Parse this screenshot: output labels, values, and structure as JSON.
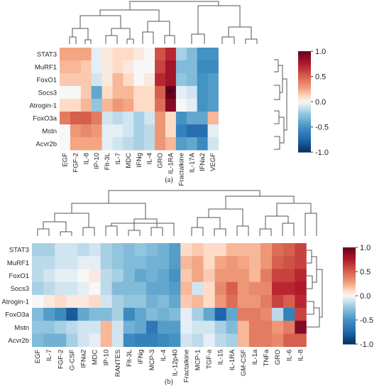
{
  "chart_data": [
    {
      "type": "heatmap",
      "panel_label": "(a)",
      "rows": [
        "STAT3",
        "MuRF1",
        "FoxO1",
        "Socs3",
        "Atrogin-1",
        "FoxO3a",
        "Mstn",
        "Acvr2b"
      ],
      "columns": [
        "EGF",
        "FGF-2",
        "IL-8",
        "IP-10",
        "Flt-3L",
        "IL-7",
        "MDC",
        "IFNg",
        "IL-4",
        "GRO",
        "IL-1RA",
        "Fractalkine",
        "IL-17A",
        "IFNa2",
        "VEGF"
      ],
      "values": [
        [
          0.25,
          0.25,
          0.25,
          -0.05,
          0.05,
          0.1,
          0.1,
          0.05,
          0.0,
          0.55,
          0.7,
          -0.2,
          -0.3,
          -0.5,
          -0.5
        ],
        [
          0.2,
          0.2,
          0.15,
          -0.05,
          0.05,
          0.1,
          0.05,
          0.0,
          0.0,
          0.6,
          0.8,
          -0.3,
          -0.3,
          -0.55,
          -0.55
        ],
        [
          0.15,
          0.15,
          0.15,
          -0.1,
          0.05,
          0.2,
          0.1,
          0.0,
          0.05,
          0.7,
          0.8,
          -0.25,
          -0.3,
          -0.5,
          -0.45
        ],
        [
          0.0,
          0.0,
          0.15,
          -0.4,
          0.1,
          0.2,
          0.2,
          0.1,
          0.1,
          0.5,
          1.0,
          -0.05,
          -0.1,
          -0.5,
          -0.45
        ],
        [
          0.1,
          0.1,
          0.2,
          -0.25,
          0.2,
          0.3,
          0.25,
          0.1,
          0.1,
          0.45,
          0.9,
          0.0,
          -0.05,
          -0.5,
          -0.45
        ],
        [
          0.4,
          0.5,
          0.5,
          0.4,
          -0.1,
          -0.15,
          -0.1,
          -0.2,
          -0.1,
          0.3,
          0.1,
          -0.5,
          -0.4,
          -0.4,
          0.2
        ],
        [
          0.0,
          0.3,
          0.35,
          0.3,
          -0.05,
          -0.05,
          -0.1,
          -0.2,
          -0.15,
          0.3,
          0.1,
          -0.6,
          -0.7,
          -0.7,
          -0.05
        ],
        [
          0.0,
          0.25,
          0.25,
          0.25,
          -0.05,
          -0.1,
          -0.15,
          -0.2,
          -0.15,
          0.3,
          0.2,
          -0.45,
          -0.4,
          -0.55,
          -0.1
        ]
      ],
      "annotation": {
        "text": "*",
        "row": "Socs3",
        "column": "IL-1RA"
      },
      "colorbar": {
        "min": -1.0,
        "max": 1.0,
        "ticks": [
          "1.0",
          "0.5",
          "0.0",
          "-0.5",
          "-1.0"
        ]
      },
      "colormap": {
        "negative": "#053061",
        "neutral": "#f7f7f7",
        "positive": "#67001f"
      }
    },
    {
      "type": "heatmap",
      "panel_label": "(b)",
      "rows": [
        "STAT3",
        "MuRF1",
        "FoxO1",
        "Socs3",
        "Atrogin-1",
        "FoxO3a",
        "Mstn",
        "Acvr2b"
      ],
      "columns": [
        "EGF",
        "IL-7",
        "FGF-2",
        "G-CSF",
        "IFNa2",
        "MDC",
        "IP-10",
        "RANTES",
        "Flt-3L",
        "IFNg",
        "MCP-3",
        "IL-4",
        "IL-12p40",
        "Fractalkine",
        "MCP-1",
        "TGF-a",
        "IL-15",
        "IL-1RA",
        "GM-CSF",
        "IL-1a",
        "TNFa",
        "GRO",
        "IL-6",
        "IL-8"
      ],
      "values": [
        [
          -0.2,
          -0.2,
          -0.1,
          -0.1,
          -0.15,
          -0.1,
          -0.2,
          -0.25,
          -0.3,
          -0.25,
          -0.3,
          -0.35,
          -0.45,
          0.1,
          0.15,
          0.1,
          0.1,
          0.2,
          0.2,
          0.2,
          0.3,
          0.45,
          0.5,
          0.6
        ],
        [
          -0.15,
          -0.15,
          -0.1,
          -0.1,
          -0.05,
          -0.05,
          -0.2,
          -0.25,
          -0.3,
          -0.3,
          -0.35,
          -0.35,
          -0.45,
          0.2,
          0.25,
          0.1,
          0.25,
          0.3,
          0.25,
          0.2,
          0.3,
          0.5,
          0.55,
          0.6
        ],
        [
          -0.15,
          -0.1,
          -0.05,
          -0.05,
          0.0,
          0.05,
          -0.15,
          -0.2,
          -0.3,
          -0.4,
          -0.35,
          -0.4,
          -0.5,
          0.15,
          0.25,
          0.15,
          0.3,
          0.3,
          0.3,
          0.2,
          0.4,
          0.6,
          0.6,
          0.7
        ],
        [
          -0.2,
          -0.15,
          -0.1,
          -0.1,
          -0.05,
          0.0,
          -0.15,
          -0.3,
          -0.3,
          -0.3,
          -0.4,
          -0.4,
          -0.45,
          0.2,
          -0.1,
          0.1,
          0.35,
          0.5,
          0.3,
          0.35,
          0.35,
          0.7,
          0.7,
          0.75
        ],
        [
          0.0,
          0.05,
          0.1,
          0.05,
          0.05,
          0.1,
          -0.1,
          -0.2,
          -0.25,
          -0.25,
          -0.35,
          -0.3,
          -0.4,
          0.15,
          0.2,
          0.1,
          0.3,
          0.45,
          0.3,
          0.3,
          0.4,
          0.6,
          0.5,
          0.7
        ],
        [
          -0.3,
          -0.45,
          -0.55,
          -0.8,
          -0.4,
          -0.3,
          -0.3,
          -0.2,
          -0.55,
          -0.4,
          -0.3,
          -0.35,
          -0.3,
          -0.05,
          -0.2,
          -0.4,
          -0.75,
          -0.4,
          0.4,
          0.4,
          0.35,
          -0.15,
          -0.6,
          0.6
        ],
        [
          -0.25,
          -0.25,
          -0.2,
          -0.15,
          -0.1,
          -0.1,
          0.2,
          -0.1,
          -0.35,
          -0.4,
          -0.65,
          -0.45,
          -0.45,
          -0.05,
          -0.1,
          -0.1,
          -0.2,
          -0.3,
          0.2,
          0.4,
          0.4,
          0.3,
          0.4,
          0.9
        ],
        [
          -0.3,
          -0.35,
          -0.35,
          -0.2,
          -0.1,
          -0.05,
          0.2,
          -0.1,
          -0.55,
          -0.6,
          -0.6,
          -0.55,
          -0.5,
          -0.1,
          -0.15,
          -0.05,
          -0.15,
          -0.2,
          0.2,
          0.4,
          0.4,
          0.35,
          0.5,
          0.5
        ]
      ],
      "colorbar": {
        "min": -1.0,
        "max": 1.0,
        "ticks": [
          "1.0",
          "0.5",
          "0.0",
          "-0.5",
          "-1.0"
        ]
      },
      "colormap": {
        "negative": "#053061",
        "neutral": "#f7f7f7",
        "positive": "#67001f"
      }
    }
  ]
}
